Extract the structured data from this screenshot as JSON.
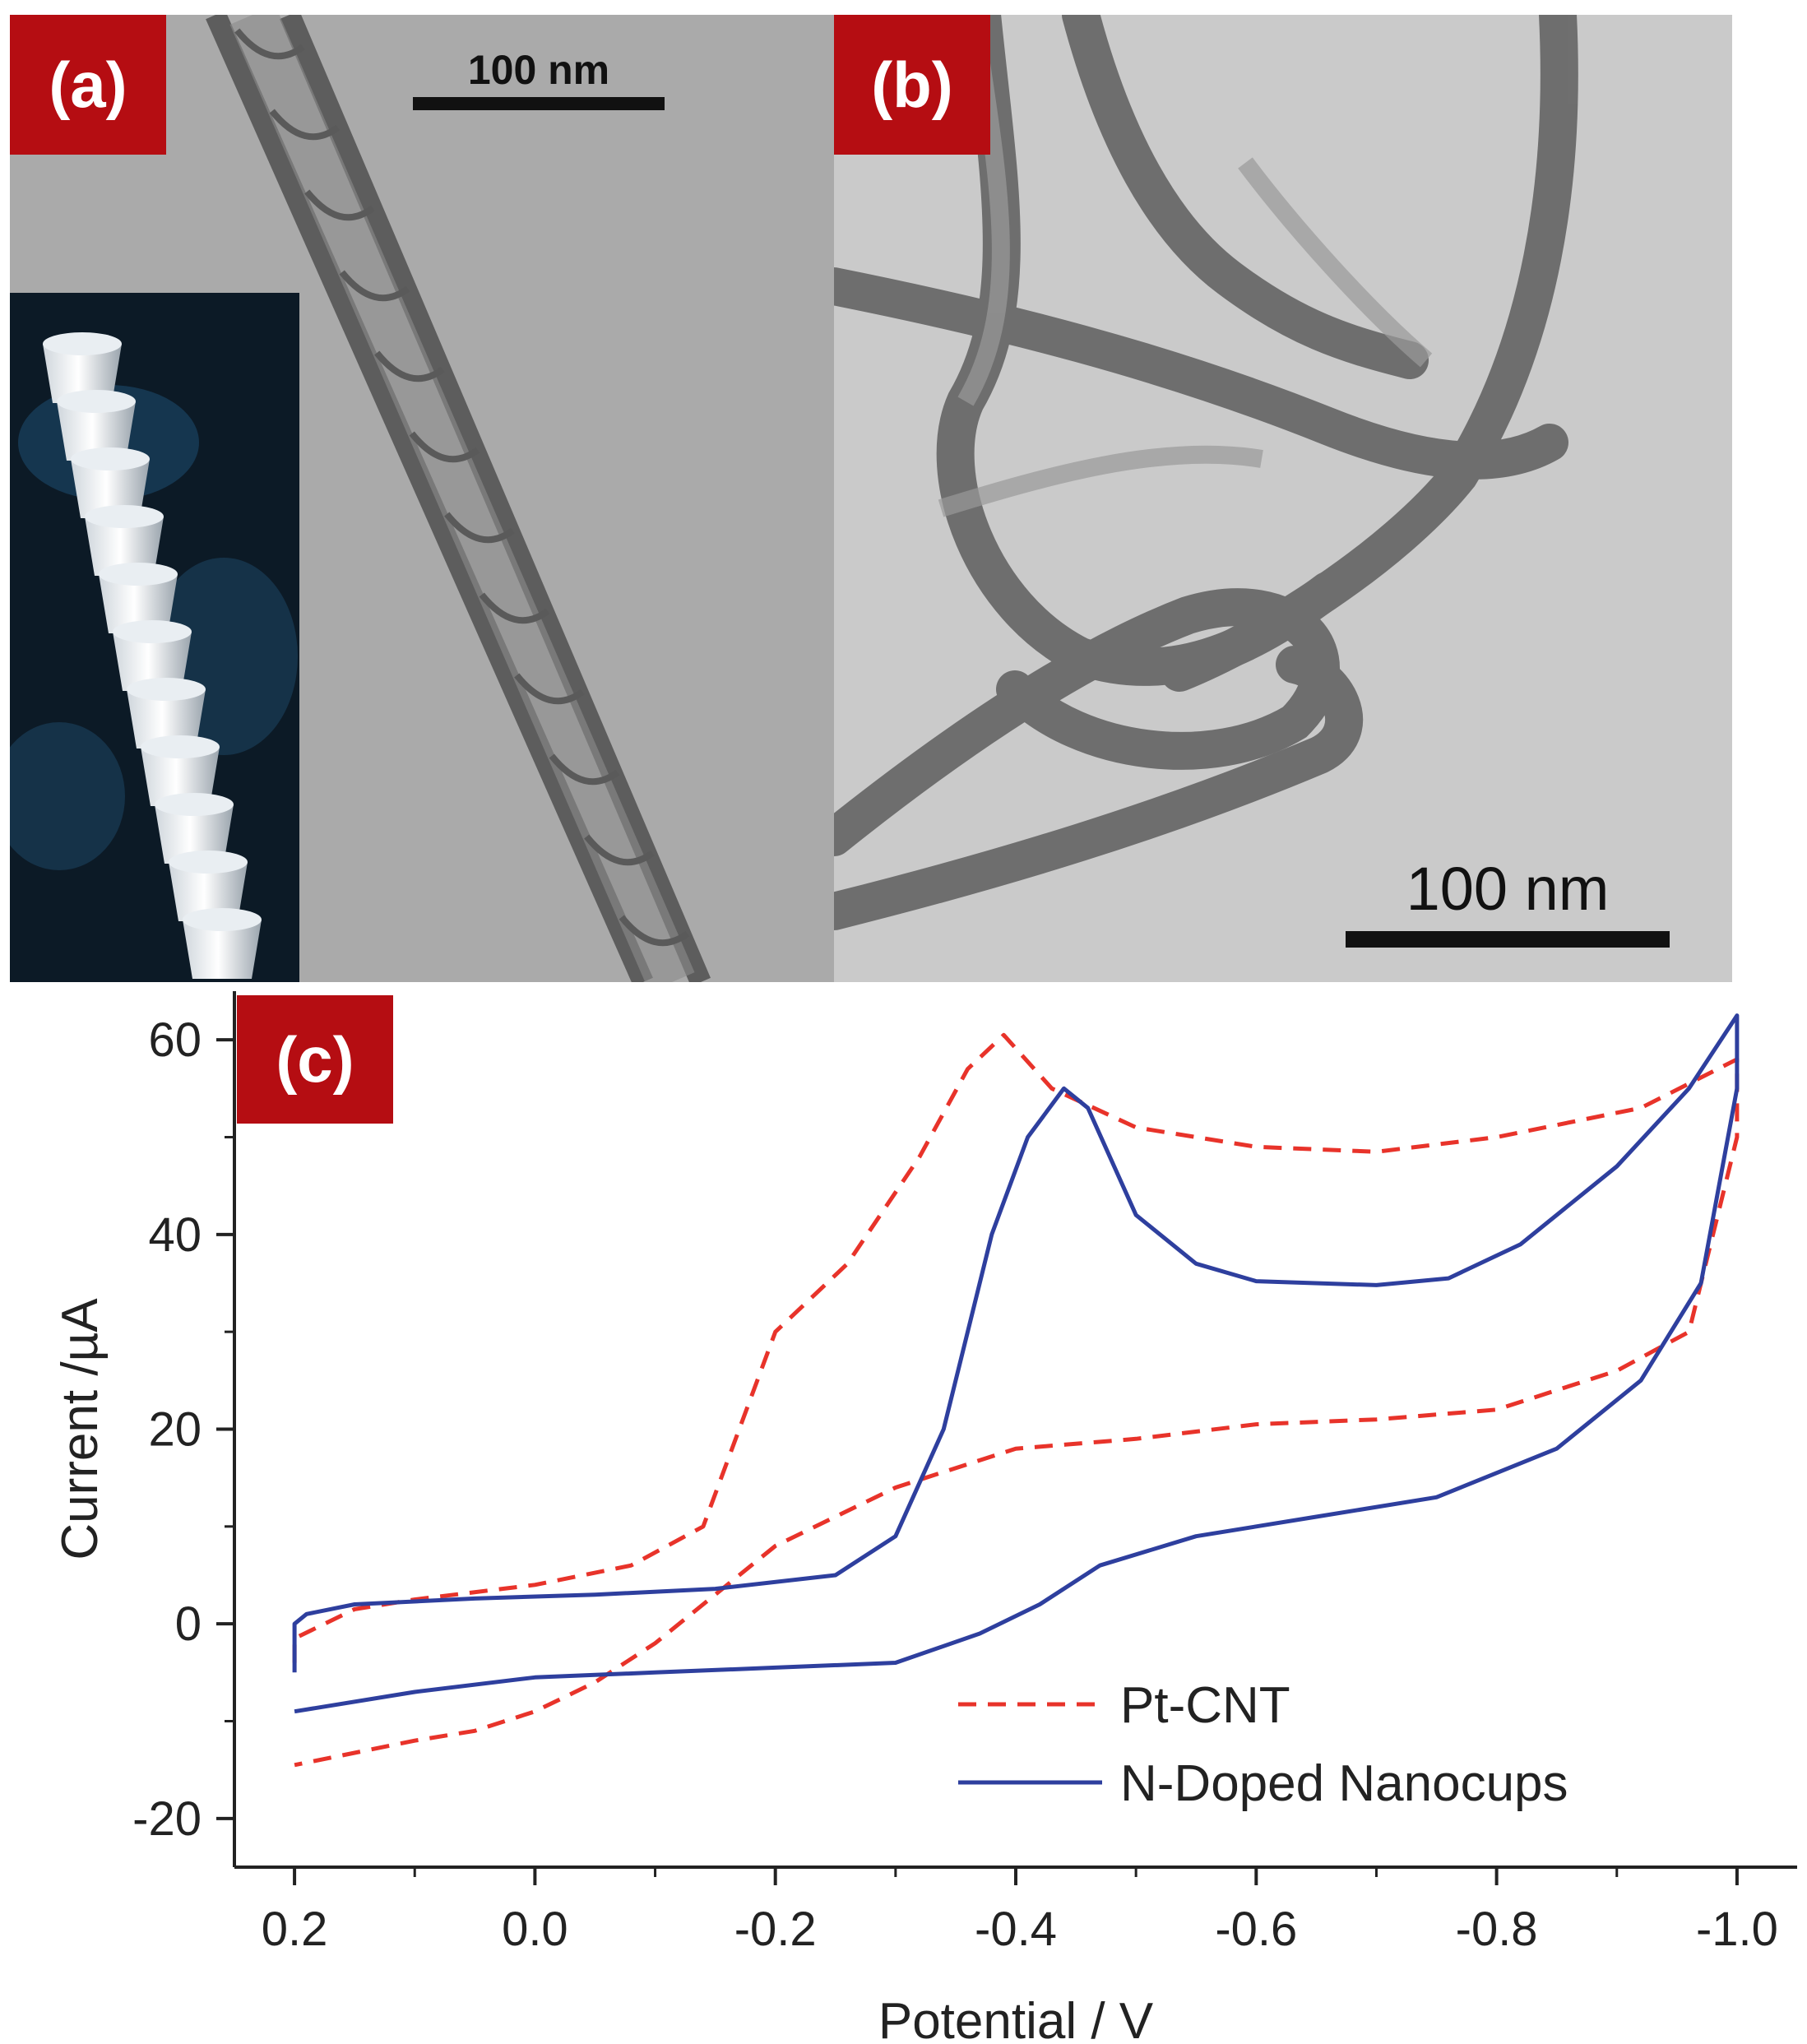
{
  "panels": {
    "a": {
      "label": "(a)",
      "scale_bar": "100 nm"
    },
    "b": {
      "label": "(b)",
      "scale_bar": "100 nm"
    },
    "c": {
      "label": "(c)"
    }
  },
  "colors": {
    "label_bg": "#b50d12",
    "series_pt": "#e8332a",
    "series_n": "#2e3f9e"
  },
  "chart_data": {
    "type": "line",
    "xlabel": "Potential / V",
    "ylabel": "Current /µA",
    "xlim": [
      0.25,
      -1.05
    ],
    "ylim": [
      -25,
      65
    ],
    "x_reversed": true,
    "xticks": [
      0.2,
      0.0,
      -0.2,
      -0.4,
      -0.6,
      -0.8,
      -1.0
    ],
    "xtick_labels": [
      "0.2",
      "0.0",
      "-0.2",
      "-0.4",
      "-0.6",
      "-0.8",
      "-1.0"
    ],
    "yticks": [
      -20,
      0,
      20,
      40,
      60
    ],
    "ytick_labels": [
      "-20",
      "0",
      "20",
      "40",
      "60"
    ],
    "grid": false,
    "legend_position": "bottom-right",
    "series": [
      {
        "name": "Pt-CNT",
        "style": "dashed",
        "color": "#e8332a",
        "points": [
          [
            0.2,
            -4
          ],
          [
            0.2,
            -1.5
          ],
          [
            0.15,
            1.5
          ],
          [
            0.1,
            2.5
          ],
          [
            0.0,
            4
          ],
          [
            -0.08,
            6
          ],
          [
            -0.14,
            10
          ],
          [
            -0.17,
            20
          ],
          [
            -0.2,
            30
          ],
          [
            -0.26,
            37
          ],
          [
            -0.32,
            48
          ],
          [
            -0.36,
            57
          ],
          [
            -0.39,
            60.5
          ],
          [
            -0.43,
            55
          ],
          [
            -0.5,
            51
          ],
          [
            -0.6,
            49
          ],
          [
            -0.7,
            48.5
          ],
          [
            -0.8,
            50
          ],
          [
            -0.92,
            53
          ],
          [
            -1.0,
            58
          ],
          [
            -1.0,
            50
          ],
          [
            -0.96,
            30
          ],
          [
            -0.9,
            26
          ],
          [
            -0.8,
            22
          ],
          [
            -0.7,
            21
          ],
          [
            -0.6,
            20.5
          ],
          [
            -0.5,
            19
          ],
          [
            -0.4,
            18
          ],
          [
            -0.3,
            14
          ],
          [
            -0.2,
            8
          ],
          [
            -0.16,
            4
          ],
          [
            -0.1,
            -2
          ],
          [
            -0.05,
            -6
          ],
          [
            0.0,
            -9
          ],
          [
            0.05,
            -11
          ],
          [
            0.1,
            -12
          ],
          [
            0.2,
            -14.5
          ]
        ]
      },
      {
        "name": "N-Doped Nanocups",
        "style": "solid",
        "color": "#2e3f9e",
        "points": [
          [
            0.2,
            -5
          ],
          [
            0.2,
            0
          ],
          [
            0.19,
            1
          ],
          [
            0.15,
            2
          ],
          [
            0.05,
            2.6
          ],
          [
            -0.05,
            3
          ],
          [
            -0.15,
            3.6
          ],
          [
            -0.25,
            5
          ],
          [
            -0.3,
            9
          ],
          [
            -0.34,
            20
          ],
          [
            -0.38,
            40
          ],
          [
            -0.41,
            50
          ],
          [
            -0.44,
            55
          ],
          [
            -0.46,
            53
          ],
          [
            -0.5,
            42
          ],
          [
            -0.55,
            37
          ],
          [
            -0.6,
            35.2
          ],
          [
            -0.7,
            34.8
          ],
          [
            -0.76,
            35.5
          ],
          [
            -0.82,
            39
          ],
          [
            -0.9,
            47
          ],
          [
            -0.96,
            55
          ],
          [
            -1.0,
            62.5
          ],
          [
            -1.0,
            55
          ],
          [
            -0.97,
            35
          ],
          [
            -0.92,
            25
          ],
          [
            -0.85,
            18
          ],
          [
            -0.75,
            13
          ],
          [
            -0.65,
            11
          ],
          [
            -0.55,
            9
          ],
          [
            -0.47,
            6
          ],
          [
            -0.42,
            2
          ],
          [
            -0.37,
            -1
          ],
          [
            -0.3,
            -4
          ],
          [
            -0.2,
            -4.5
          ],
          [
            -0.1,
            -5
          ],
          [
            0.0,
            -5.5
          ],
          [
            0.1,
            -7
          ],
          [
            0.2,
            -9
          ]
        ]
      }
    ]
  }
}
